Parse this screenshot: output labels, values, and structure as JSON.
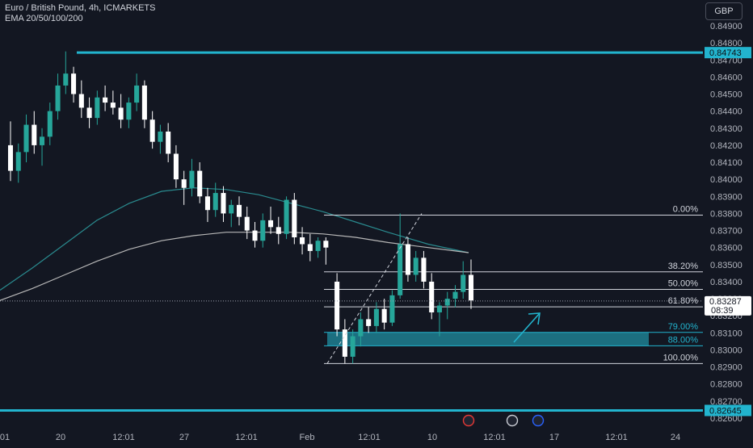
{
  "header": {
    "title": "Euro / British Pound, 4h, ICMARKETS",
    "indicator": "EMA 20/50/100/200"
  },
  "currency_button": "GBP",
  "colors": {
    "background": "#131722",
    "bull": "#26a69a",
    "bear": "#ffffff",
    "accent_line": "#22b4ce",
    "zone": "#1e7f90",
    "ema_fast": "#2a8b8f",
    "ema_slow": "#b7b7b7",
    "axis_text": "#b2b5be"
  },
  "chart_data": {
    "type": "candlestick",
    "symbol": "Euro / British Pound",
    "timeframe": "4h",
    "exchange": "ICMARKETS",
    "y_axis": {
      "ticks": [
        "0.84900",
        "0.84800",
        "0.84700",
        "0.84600",
        "0.84500",
        "0.84400",
        "0.84300",
        "0.84200",
        "0.84100",
        "0.84000",
        "0.83900",
        "0.83800",
        "0.83700",
        "0.83600",
        "0.83500",
        "0.83400",
        "0.83300",
        "0.83200",
        "0.83100",
        "0.83000",
        "0.82900",
        "0.82800",
        "0.82700",
        "0.82600"
      ],
      "range": [
        0.8258,
        0.8497
      ]
    },
    "x_axis": {
      "ticks": [
        "01",
        "20",
        "12:01",
        "27",
        "12:01",
        "Feb",
        "12:01",
        "10",
        "12:01",
        "17",
        "12:01",
        "24"
      ]
    },
    "price_lines": [
      {
        "label": "0.84743",
        "value": 0.84743
      },
      {
        "label": "0.82645",
        "value": 0.82645
      }
    ],
    "last_price": {
      "label": "0.83287",
      "value": 0.83287,
      "countdown": "08:39"
    },
    "fibonacci": {
      "start_price": 0.8379,
      "end_price": 0.8292,
      "levels": [
        {
          "label": "0.00%",
          "ratio": 0.0
        },
        {
          "label": "38.20%",
          "ratio": 0.382
        },
        {
          "label": "50.00%",
          "ratio": 0.5
        },
        {
          "label": "61.80%",
          "ratio": 0.618
        },
        {
          "label": "79.00%",
          "ratio": 0.79
        },
        {
          "label": "88.00%",
          "ratio": 0.88
        },
        {
          "label": "100.00%",
          "ratio": 1.0
        }
      ]
    },
    "ema_fast": [
      0.8335,
      0.8348,
      0.8362,
      0.8376,
      0.8386,
      0.8393,
      0.8395,
      0.8394,
      0.8391,
      0.8386,
      0.8381,
      0.8375,
      0.8369,
      0.8362,
      0.8357
    ],
    "ema_slow": [
      0.8329,
      0.8336,
      0.8344,
      0.8352,
      0.8359,
      0.8364,
      0.8367,
      0.8369,
      0.8369,
      0.8369,
      0.8368,
      0.8366,
      0.8363,
      0.836,
      0.8357
    ],
    "candles": [
      [
        0.842,
        0.8434,
        0.8399,
        0.8405
      ],
      [
        0.8405,
        0.8421,
        0.8398,
        0.8416
      ],
      [
        0.8416,
        0.8438,
        0.841,
        0.8432
      ],
      [
        0.8432,
        0.844,
        0.8415,
        0.842
      ],
      [
        0.842,
        0.843,
        0.8408,
        0.8425
      ],
      [
        0.8425,
        0.8445,
        0.842,
        0.844
      ],
      [
        0.844,
        0.8462,
        0.8435,
        0.8455
      ],
      [
        0.8455,
        0.8475,
        0.845,
        0.8462
      ],
      [
        0.8462,
        0.8466,
        0.8445,
        0.845
      ],
      [
        0.845,
        0.8458,
        0.8436,
        0.8442
      ],
      [
        0.8442,
        0.8448,
        0.843,
        0.8436
      ],
      [
        0.8436,
        0.8452,
        0.8432,
        0.8448
      ],
      [
        0.8448,
        0.8455,
        0.844,
        0.8445
      ],
      [
        0.8445,
        0.8452,
        0.8438,
        0.8442
      ],
      [
        0.8442,
        0.845,
        0.843,
        0.8435
      ],
      [
        0.8435,
        0.8448,
        0.843,
        0.8445
      ],
      [
        0.8445,
        0.8462,
        0.844,
        0.8455
      ],
      [
        0.8455,
        0.8458,
        0.843,
        0.8435
      ],
      [
        0.8435,
        0.844,
        0.8418,
        0.8422
      ],
      [
        0.8422,
        0.8432,
        0.8415,
        0.8428
      ],
      [
        0.8428,
        0.8433,
        0.841,
        0.8415
      ],
      [
        0.8415,
        0.842,
        0.8395,
        0.84
      ],
      [
        0.84,
        0.8405,
        0.8385,
        0.8395
      ],
      [
        0.8395,
        0.8412,
        0.839,
        0.8405
      ],
      [
        0.8405,
        0.841,
        0.8386,
        0.839
      ],
      [
        0.839,
        0.8395,
        0.8375,
        0.8382
      ],
      [
        0.8382,
        0.8398,
        0.8378,
        0.8392
      ],
      [
        0.8392,
        0.8396,
        0.8375,
        0.838
      ],
      [
        0.838,
        0.8388,
        0.8372,
        0.8385
      ],
      [
        0.8385,
        0.839,
        0.8373,
        0.8378
      ],
      [
        0.8378,
        0.8384,
        0.8365,
        0.837
      ],
      [
        0.837,
        0.8375,
        0.836,
        0.8364
      ],
      [
        0.8364,
        0.838,
        0.836,
        0.8376
      ],
      [
        0.8376,
        0.8384,
        0.8368,
        0.8372
      ],
      [
        0.8372,
        0.8378,
        0.8362,
        0.8368
      ],
      [
        0.8368,
        0.839,
        0.8365,
        0.8388
      ],
      [
        0.8388,
        0.8392,
        0.8362,
        0.8366
      ],
      [
        0.8366,
        0.8372,
        0.8356,
        0.8362
      ],
      [
        0.8362,
        0.8368,
        0.8352,
        0.8358
      ],
      [
        0.8358,
        0.8366,
        0.8354,
        0.8364
      ],
      [
        0.8364,
        0.8366,
        0.835,
        0.836
      ],
      [
        0.834,
        0.8345,
        0.8308,
        0.8312
      ],
      [
        0.8312,
        0.8318,
        0.8292,
        0.8296
      ],
      [
        0.8296,
        0.8312,
        0.8292,
        0.8308
      ],
      [
        0.8308,
        0.8322,
        0.8302,
        0.8318
      ],
      [
        0.8318,
        0.8325,
        0.831,
        0.8314
      ],
      [
        0.8314,
        0.8328,
        0.831,
        0.8324
      ],
      [
        0.8324,
        0.833,
        0.8312,
        0.8316
      ],
      [
        0.8316,
        0.8335,
        0.8314,
        0.8332
      ],
      [
        0.8332,
        0.838,
        0.833,
        0.8362
      ],
      [
        0.8362,
        0.8366,
        0.834,
        0.8344
      ],
      [
        0.8344,
        0.8358,
        0.834,
        0.8354
      ],
      [
        0.8354,
        0.8358,
        0.8336,
        0.834
      ],
      [
        0.834,
        0.8345,
        0.8318,
        0.8322
      ],
      [
        0.8322,
        0.8328,
        0.8308,
        0.8326
      ],
      [
        0.8326,
        0.8334,
        0.8318,
        0.833
      ],
      [
        0.833,
        0.8338,
        0.8325,
        0.8334
      ],
      [
        0.8334,
        0.8352,
        0.833,
        0.8344
      ],
      [
        0.8344,
        0.8353,
        0.8324,
        0.8329
      ]
    ]
  }
}
